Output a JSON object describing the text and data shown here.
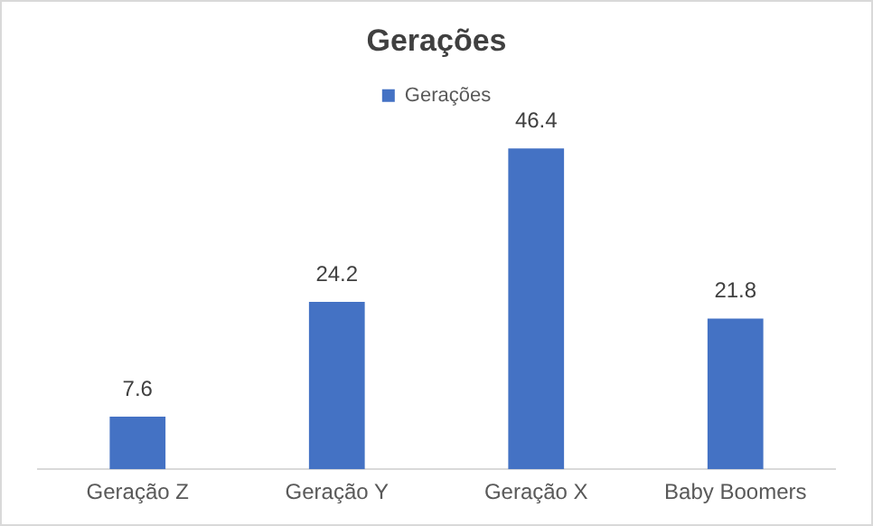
{
  "chart_data": {
    "type": "bar",
    "title": "Gerações",
    "categories": [
      "Geração Z",
      "Geração Y",
      "Geração X",
      "Baby Boomers"
    ],
    "series": [
      {
        "name": "Gerações",
        "color": "#4472c4",
        "values": [
          7.6,
          24.2,
          46.4,
          21.8
        ]
      }
    ],
    "data_labels": true,
    "legend": "top",
    "grid": false,
    "tick_labels": "x"
  }
}
